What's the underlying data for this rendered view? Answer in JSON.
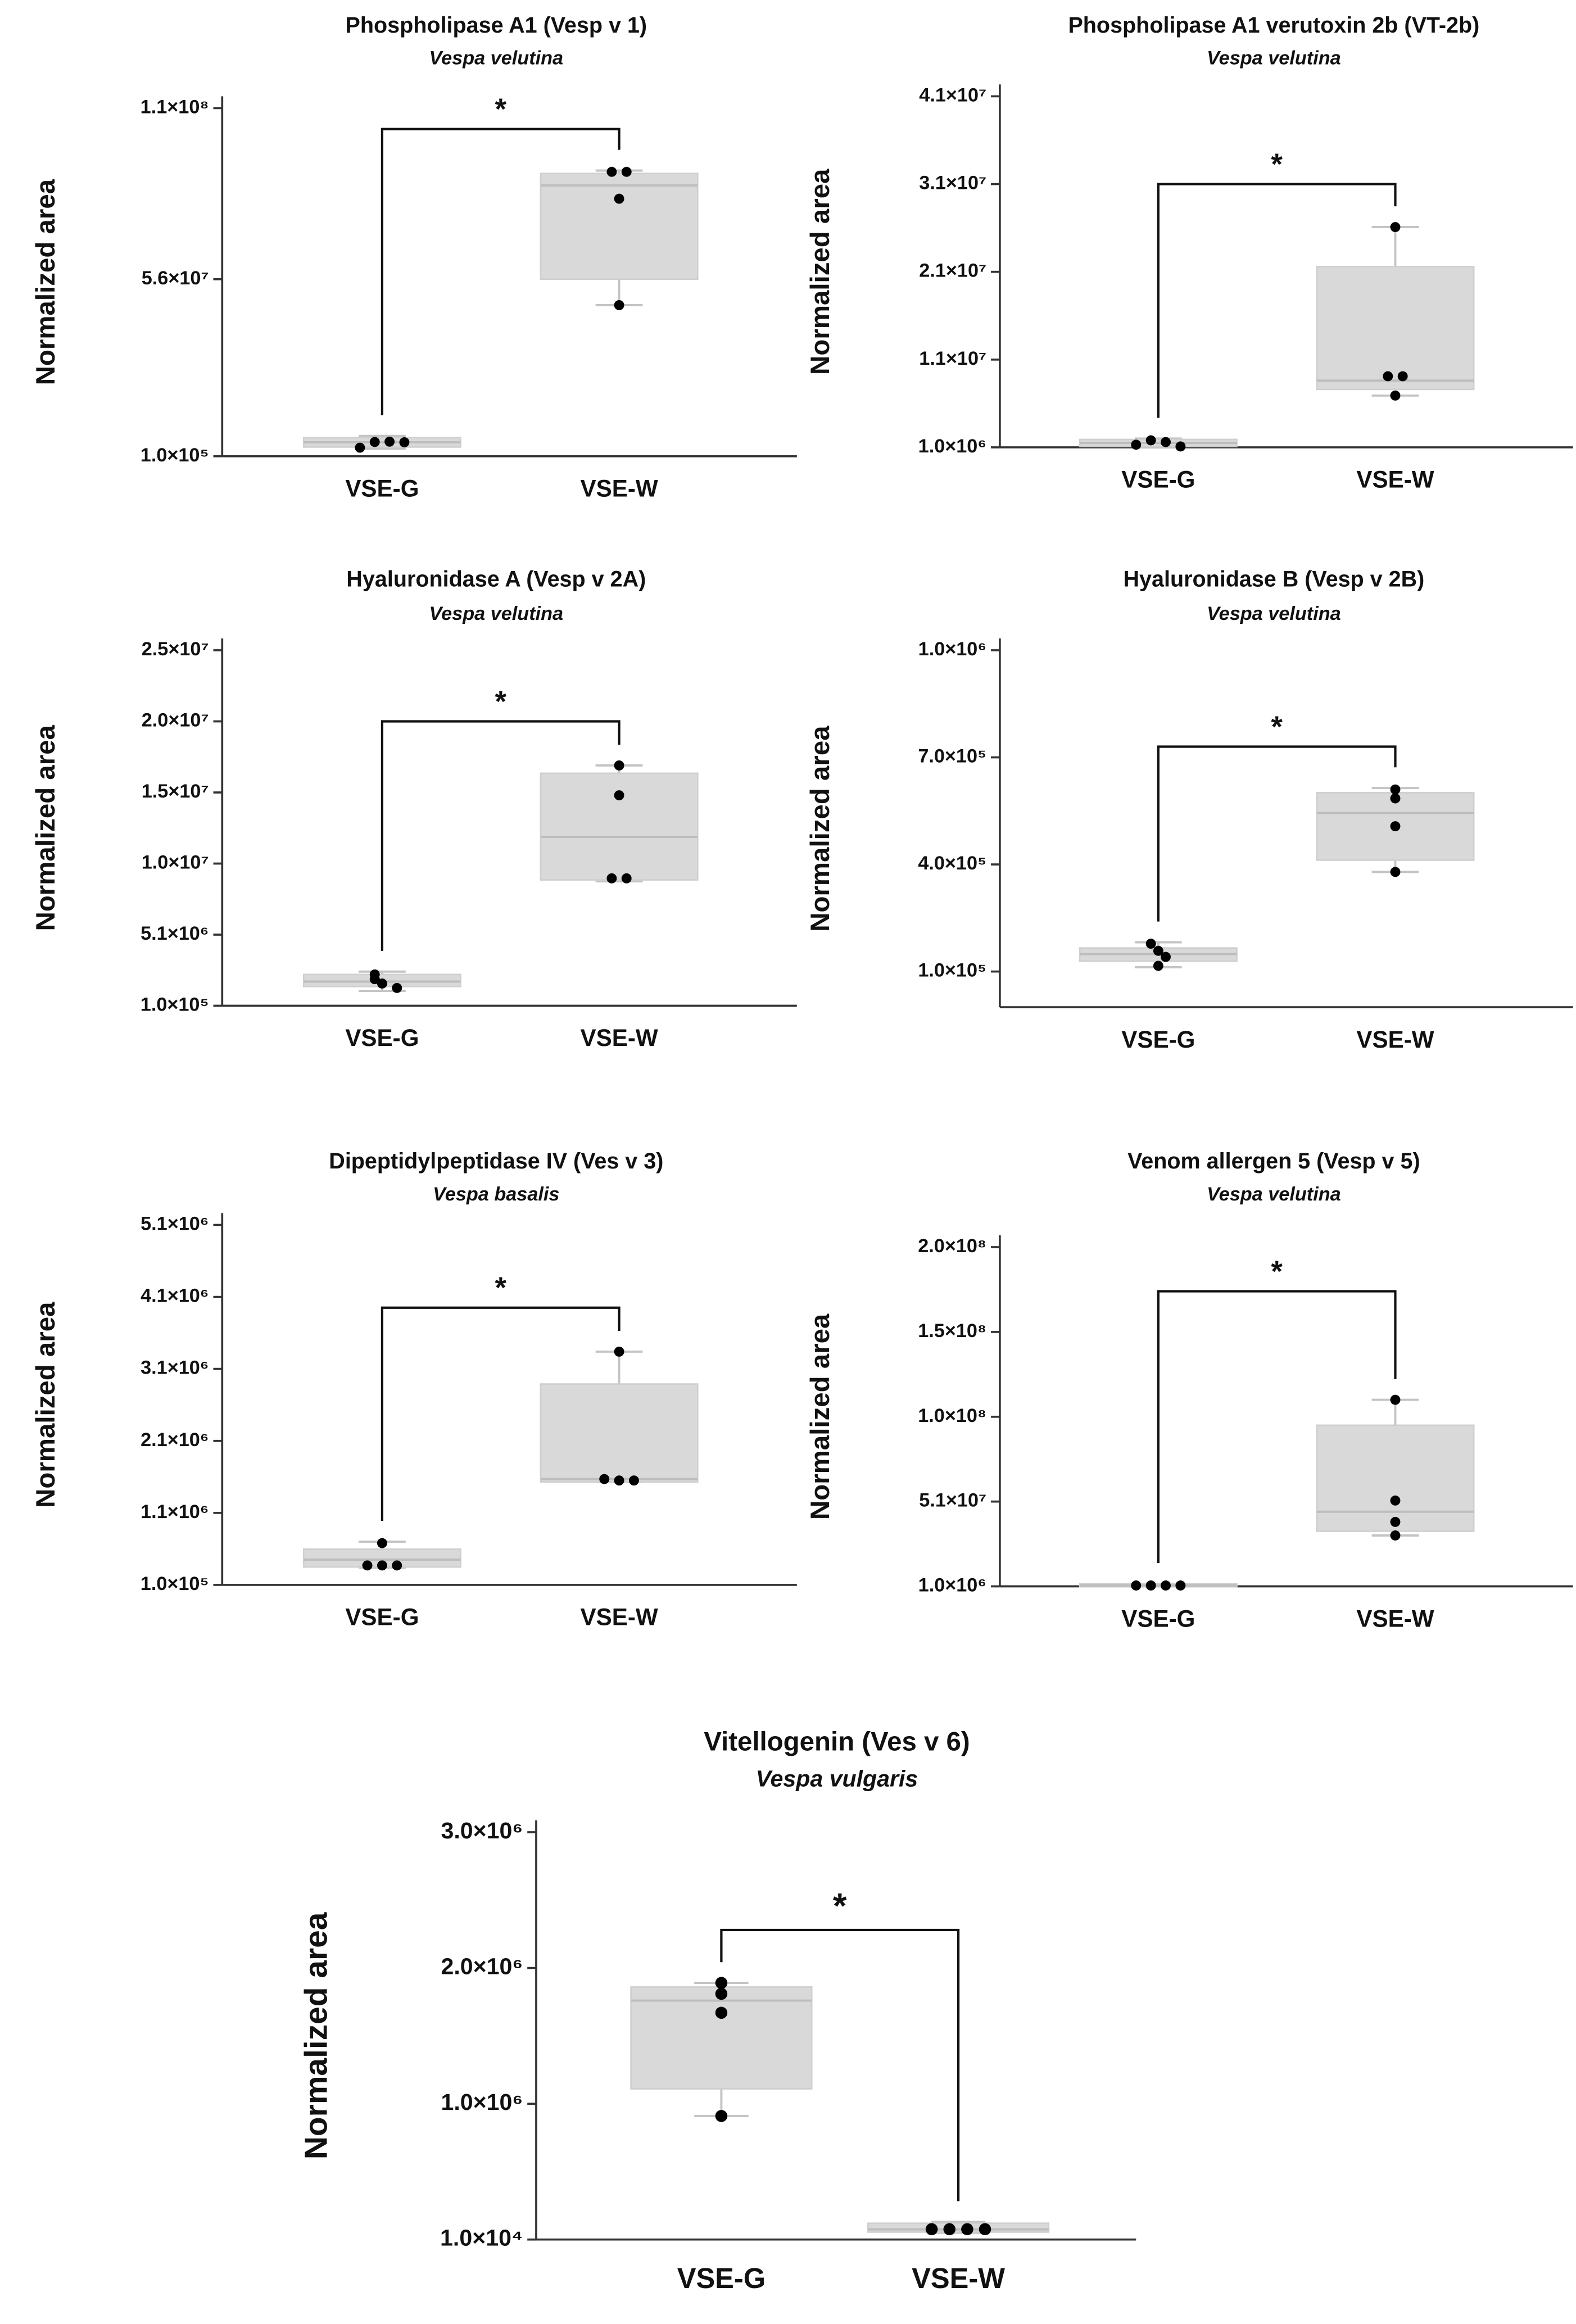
{
  "chart_data": [
    {
      "type": "box",
      "title": "Phospholipase A1 (Vesp v 1)",
      "subtitle": "Vespa velutina",
      "ylabel": "Normalized area",
      "annotation": "*",
      "categories": [
        "VSE-G",
        "VSE-W"
      ],
      "color": "#d9d9d9",
      "point_color": "#000000",
      "ylim": [
        100000,
        110000000
      ],
      "yticks": [
        {
          "value": 100000,
          "label": "1.0×10⁵"
        },
        {
          "value": 56000000,
          "label": "5.6×10⁷"
        },
        {
          "value": 110000000,
          "label": "1.1×10⁸"
        }
      ],
      "boxes": [
        {
          "min": 2500000,
          "q1": 3000000,
          "median": 4500000,
          "q3": 6000000,
          "max": 6500000,
          "points": [
            2800000,
            4600000,
            4700000,
            4500000
          ]
        },
        {
          "min": 47800000,
          "q1": 56000000,
          "median": 85600000,
          "q3": 89400000,
          "max": 90300000,
          "points": [
            89900000,
            89900000,
            81400000,
            47800000
          ]
        }
      ]
    },
    {
      "type": "box",
      "title": "Phospholipase A1 verutoxin 2b (VT-2b)",
      "subtitle": "Vespa velutina",
      "ylabel": "Normalized area",
      "annotation": "*",
      "categories": [
        "VSE-G",
        "VSE-W"
      ],
      "color": "#d9d9d9",
      "point_color": "#000000",
      "ylim": [
        1000000,
        41000000
      ],
      "yticks": [
        {
          "value": 1000000,
          "label": "1.0×10⁶"
        },
        {
          "value": 11000000,
          "label": "1.1×10⁷"
        },
        {
          "value": 21000000,
          "label": "2.1×10⁷"
        },
        {
          "value": 31000000,
          "label": "3.1×10⁷"
        },
        {
          "value": 41000000,
          "label": "4.1×10⁷"
        }
      ],
      "boxes": [
        {
          "min": 1000000,
          "q1": 1100000,
          "median": 1500000,
          "q3": 1900000,
          "max": 2000000,
          "points": [
            1300000,
            1800000,
            1600000,
            1100000
          ]
        },
        {
          "min": 6900000,
          "q1": 7600000,
          "median": 8600000,
          "q3": 21600000,
          "max": 26100000,
          "points": [
            26100000,
            9100000,
            9100000,
            6900000
          ]
        }
      ]
    },
    {
      "type": "box",
      "title": "Hyaluronidase A (Vesp v 2A)",
      "subtitle": "Vespa velutina",
      "ylabel": "Normalized area",
      "annotation": "*",
      "categories": [
        "VSE-G",
        "VSE-W"
      ],
      "color": "#d9d9d9",
      "point_color": "#000000",
      "ylim": [
        100000,
        25100000
      ],
      "yticks": [
        {
          "value": 100000,
          "label": "1.0×10⁵"
        },
        {
          "value": 5100000,
          "label": "5.1×10⁶"
        },
        {
          "value": 10100000,
          "label": "1.0×10⁷"
        },
        {
          "value": 15100000,
          "label": "1.5×10⁷"
        },
        {
          "value": 20100000,
          "label": "2.0×10⁷"
        },
        {
          "value": 25100000,
          "label": "2.5×10⁷"
        }
      ],
      "boxes": [
        {
          "min": 1140000,
          "q1": 1450000,
          "median": 1800000,
          "q3": 2300000,
          "max": 2500000,
          "points": [
            2300000,
            1970000,
            1660000,
            1350000
          ]
        },
        {
          "min": 8850000,
          "q1": 8950000,
          "median": 11980000,
          "q3": 16450000,
          "max": 17000000,
          "points": [
            17000000,
            14900000,
            9060000,
            9060000
          ]
        }
      ]
    },
    {
      "type": "box",
      "title": "Hyaluronidase B (Vesp v 2B)",
      "subtitle": "Vespa velutina",
      "ylabel": "Normalized area",
      "annotation": "*",
      "categories": [
        "VSE-G",
        "VSE-W"
      ],
      "color": "#d9d9d9",
      "point_color": "#000000",
      "ylim": [
        0,
        1000000
      ],
      "yticks": [
        {
          "value": 100000,
          "label": "1.0×10⁵"
        },
        {
          "value": 400000,
          "label": "4.0×10⁵"
        },
        {
          "value": 700000,
          "label": "7.0×10⁵"
        },
        {
          "value": 1000000,
          "label": "1.0×10⁶"
        }
      ],
      "boxes": [
        {
          "min": 112000,
          "q1": 129000,
          "median": 149000,
          "q3": 166000,
          "max": 182000,
          "points": [
            178000,
            158000,
            141000,
            116000
          ]
        },
        {
          "min": 379000,
          "q1": 412000,
          "median": 544000,
          "q3": 601000,
          "max": 614000,
          "points": [
            610000,
            585000,
            507000,
            379000
          ]
        }
      ]
    },
    {
      "type": "box",
      "title": "Dipeptidylpeptidase IV (Ves v 3)",
      "subtitle": "Vespa basalis",
      "ylabel": "Normalized area",
      "annotation": "*",
      "categories": [
        "VSE-G",
        "VSE-W"
      ],
      "color": "#d9d9d9",
      "point_color": "#000000",
      "ylim": [
        100000,
        5100000
      ],
      "yticks": [
        {
          "value": 100000,
          "label": "1.0×10⁵"
        },
        {
          "value": 1100000,
          "label": "1.1×10⁶"
        },
        {
          "value": 2100000,
          "label": "2.1×10⁶"
        },
        {
          "value": 3100000,
          "label": "3.1×10⁶"
        },
        {
          "value": 4100000,
          "label": "4.1×10⁶"
        },
        {
          "value": 5100000,
          "label": "5.1×10⁶"
        }
      ],
      "boxes": [
        {
          "min": 340000,
          "q1": 348000,
          "median": 450000,
          "q3": 596000,
          "max": 700000,
          "points": [
            680000,
            370000,
            370000,
            370000
          ]
        },
        {
          "min": 1530000,
          "q1": 1530000,
          "median": 1570000,
          "q3": 2890000,
          "max": 3340000,
          "points": [
            3340000,
            1570000,
            1550000,
            1550000
          ]
        }
      ]
    },
    {
      "type": "box",
      "title": "Venom allergen 5 (Vesp v 5)",
      "subtitle": "Vespa velutina",
      "ylabel": "Normalized area",
      "annotation": "*",
      "categories": [
        "VSE-G",
        "VSE-W"
      ],
      "color": "#d9d9d9",
      "point_color": "#000000",
      "ylim": [
        1000000,
        201000000
      ],
      "yticks": [
        {
          "value": 1000000,
          "label": "1.0×10⁶"
        },
        {
          "value": 51000000,
          "label": "5.1×10⁷"
        },
        {
          "value": 101000000,
          "label": "1.0×10⁸"
        },
        {
          "value": 151000000,
          "label": "1.5×10⁸"
        },
        {
          "value": 201000000,
          "label": "2.0×10⁸"
        }
      ],
      "boxes": [
        {
          "min": 1000000,
          "q1": 1000000,
          "median": 1500000,
          "q3": 2500000,
          "max": 2500000,
          "points": [
            1500000,
            1500000,
            1500000,
            1500000
          ]
        },
        {
          "min": 31000000,
          "q1": 33500000,
          "median": 45000000,
          "q3": 96000000,
          "max": 111000000,
          "points": [
            111000000,
            51600000,
            39000000,
            31000000
          ]
        }
      ]
    },
    {
      "type": "box",
      "title": "Vitellogenin (Ves v 6)",
      "subtitle": "Vespa vulgaris",
      "ylabel": "Normalized area",
      "annotation": "*",
      "categories": [
        "VSE-G",
        "VSE-W"
      ],
      "color": "#d9d9d9",
      "point_color": "#000000",
      "ylim": [
        10000,
        3010000
      ],
      "yticks": [
        {
          "value": 10000,
          "label": "1.0×10⁴"
        },
        {
          "value": 1010000,
          "label": "1.0×10⁶"
        },
        {
          "value": 2010000,
          "label": "2.0×10⁶"
        },
        {
          "value": 3010000,
          "label": "3.0×10⁶"
        }
      ],
      "boxes": [
        {
          "min": 920000,
          "q1": 1120000,
          "median": 1770000,
          "q3": 1870000,
          "max": 1900000,
          "points": [
            1900000,
            1820000,
            1680000,
            920000
          ]
        },
        {
          "min": 60000,
          "q1": 65000,
          "median": 85000,
          "q3": 130000,
          "max": 140000,
          "points": [
            86000,
            86000,
            86000,
            86000
          ]
        }
      ]
    }
  ]
}
